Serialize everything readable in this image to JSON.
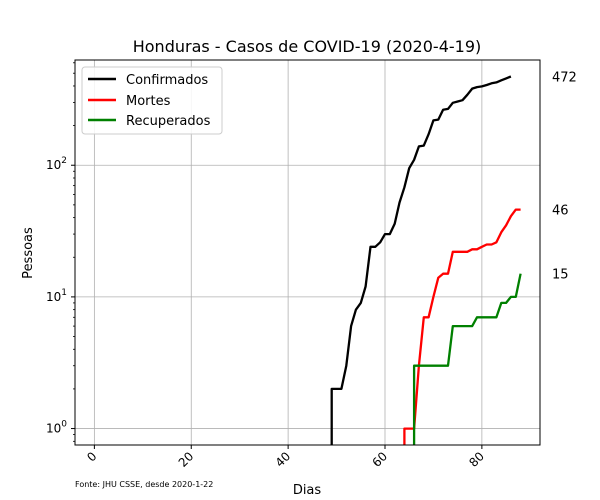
{
  "chart_data": {
    "type": "line",
    "title": "Honduras - Casos de COVID-19 (2020-4-19)",
    "xlabel": "Dias",
    "ylabel": "Pessoas",
    "source_note": "Fonte: JHU CSSE, desde 2020-1-22",
    "xlim": [
      -4,
      92
    ],
    "ylim": [
      0.75,
      630
    ],
    "y_scale": "log",
    "grid": true,
    "legend_position": "top-left",
    "x_ticks": [
      0,
      20,
      40,
      60,
      80
    ],
    "x_tick_labels": [
      "0",
      "20",
      "40",
      "60",
      "80"
    ],
    "y_ticks": [
      1,
      10,
      100
    ],
    "y_tick_labels": [
      {
        "base": "10",
        "exp": "0"
      },
      {
        "base": "10",
        "exp": "1"
      },
      {
        "base": "10",
        "exp": "2"
      }
    ],
    "series": [
      {
        "name": "Confirmados",
        "color": "#000000",
        "end_label": "472",
        "points": [
          [
            49,
            0.5
          ],
          [
            49,
            2
          ],
          [
            50,
            2
          ],
          [
            51,
            2
          ],
          [
            52,
            3
          ],
          [
            53,
            6
          ],
          [
            54,
            8
          ],
          [
            55,
            9
          ],
          [
            56,
            12
          ],
          [
            57,
            24
          ],
          [
            58,
            24
          ],
          [
            59,
            26
          ],
          [
            60,
            30
          ],
          [
            61,
            30
          ],
          [
            62,
            36
          ],
          [
            63,
            52
          ],
          [
            64,
            68
          ],
          [
            65,
            95
          ],
          [
            66,
            110
          ],
          [
            67,
            139
          ],
          [
            68,
            141
          ],
          [
            69,
            172
          ],
          [
            70,
            219
          ],
          [
            71,
            222
          ],
          [
            72,
            264
          ],
          [
            73,
            268
          ],
          [
            74,
            298
          ],
          [
            75,
            305
          ],
          [
            76,
            312
          ],
          [
            77,
            343
          ],
          [
            78,
            382
          ],
          [
            79,
            392
          ],
          [
            80,
            397
          ],
          [
            81,
            407
          ],
          [
            82,
            419
          ],
          [
            83,
            426
          ],
          [
            84,
            442
          ],
          [
            85,
            457
          ],
          [
            86,
            472
          ]
        ]
      },
      {
        "name": "Mortes",
        "color": "#ff0000",
        "end_label": "46",
        "points": [
          [
            64,
            0.5
          ],
          [
            64,
            1
          ],
          [
            65,
            1
          ],
          [
            66,
            1
          ],
          [
            67,
            3
          ],
          [
            68,
            7
          ],
          [
            69,
            7
          ],
          [
            70,
            10
          ],
          [
            71,
            14
          ],
          [
            72,
            15
          ],
          [
            73,
            15
          ],
          [
            74,
            22
          ],
          [
            75,
            22
          ],
          [
            76,
            22
          ],
          [
            77,
            22
          ],
          [
            78,
            23
          ],
          [
            79,
            23
          ],
          [
            80,
            24
          ],
          [
            81,
            25
          ],
          [
            82,
            25
          ],
          [
            83,
            26
          ],
          [
            84,
            31
          ],
          [
            85,
            35
          ],
          [
            86,
            41
          ],
          [
            87,
            46
          ],
          [
            88,
            46
          ]
        ]
      },
      {
        "name": "Recuperados",
        "color": "#008000",
        "end_label": "15",
        "points": [
          [
            66,
            0.5
          ],
          [
            66,
            3
          ],
          [
            67,
            3
          ],
          [
            68,
            3
          ],
          [
            69,
            3
          ],
          [
            70,
            3
          ],
          [
            71,
            3
          ],
          [
            72,
            3
          ],
          [
            73,
            3
          ],
          [
            74,
            6
          ],
          [
            75,
            6
          ],
          [
            76,
            6
          ],
          [
            77,
            6
          ],
          [
            78,
            6
          ],
          [
            79,
            7
          ],
          [
            80,
            7
          ],
          [
            81,
            7
          ],
          [
            82,
            7
          ],
          [
            83,
            7
          ],
          [
            84,
            9
          ],
          [
            85,
            9
          ],
          [
            86,
            10
          ],
          [
            87,
            10
          ],
          [
            88,
            15
          ]
        ]
      }
    ]
  }
}
